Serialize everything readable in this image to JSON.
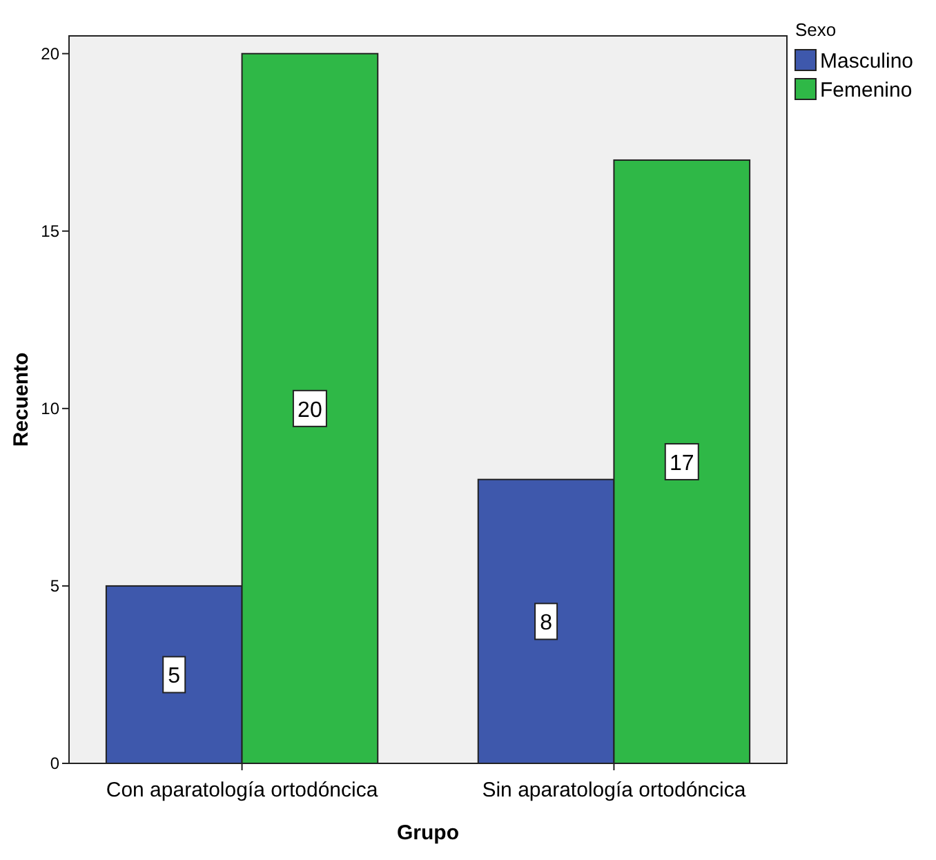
{
  "chart_data": {
    "type": "bar",
    "xlabel": "Grupo",
    "ylabel": "Recuento",
    "legend_title": "Sexo",
    "categories": [
      "Con aparatología ortodóncica",
      "Sin aparatología ortodóncica"
    ],
    "series": [
      {
        "name": "Masculino",
        "color": "#3e58ac",
        "values": [
          5,
          8
        ]
      },
      {
        "name": "Femenino",
        "color": "#2fb847",
        "values": [
          20,
          17
        ]
      }
    ],
    "ylim": [
      0,
      20.5
    ],
    "yticks": [
      0,
      5,
      10,
      15,
      20
    ],
    "data_labels": true,
    "legend": "right",
    "grid": false
  }
}
